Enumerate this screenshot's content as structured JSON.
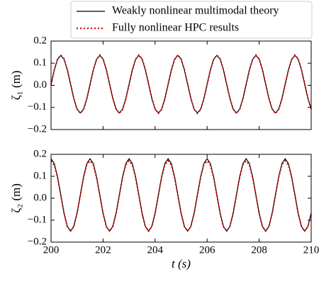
{
  "chart_data": [
    {
      "type": "line",
      "ylabel": "ζ₁ (m)",
      "x": [
        200,
        200.125,
        200.25,
        200.375,
        200.5,
        200.625,
        200.75,
        200.875,
        201,
        201.125,
        201.25,
        201.375,
        201.5,
        201.625,
        201.75,
        201.875,
        202,
        202.125,
        202.25,
        202.375,
        202.5,
        202.625,
        202.75,
        202.875,
        203,
        203.125,
        203.25,
        203.375,
        203.5,
        203.625,
        203.75,
        203.875,
        204,
        204.125,
        204.25,
        204.375,
        204.5,
        204.625,
        204.75,
        204.875,
        205,
        205.125,
        205.25,
        205.375,
        205.5,
        205.625,
        205.75,
        205.875,
        206,
        206.125,
        206.25,
        206.375,
        206.5,
        206.625,
        206.75,
        206.875,
        207,
        207.125,
        207.25,
        207.375,
        207.5,
        207.625,
        207.75,
        207.875,
        208,
        208.125,
        208.25,
        208.375,
        208.5,
        208.625,
        208.75,
        208.875,
        209,
        209.125,
        209.25,
        209.375,
        209.5,
        209.625,
        209.75,
        209.875,
        210
      ],
      "series": [
        {
          "name": "Weakly nonlinear multimodal theory",
          "color": "#000000",
          "style": "solid",
          "values": [
            0.005,
            0.07,
            0.118,
            0.135,
            0.118,
            0.07,
            0.005,
            -0.06,
            -0.108,
            -0.125,
            -0.108,
            -0.06,
            0.005,
            0.07,
            0.118,
            0.135,
            0.118,
            0.07,
            0.005,
            -0.06,
            -0.108,
            -0.125,
            -0.108,
            -0.06,
            0.005,
            0.07,
            0.118,
            0.135,
            0.118,
            0.07,
            0.005,
            -0.06,
            -0.108,
            -0.125,
            -0.108,
            -0.06,
            0.005,
            0.07,
            0.118,
            0.135,
            0.118,
            0.07,
            0.005,
            -0.06,
            -0.108,
            -0.125,
            -0.108,
            -0.06,
            0.005,
            0.07,
            0.118,
            0.135,
            0.118,
            0.07,
            0.005,
            -0.06,
            -0.108,
            -0.125,
            -0.108,
            -0.06,
            0.005,
            0.07,
            0.118,
            0.135,
            0.118,
            0.07,
            0.005,
            -0.06,
            -0.108,
            -0.125,
            -0.108,
            -0.06,
            0.005,
            0.07,
            0.118,
            0.135,
            0.118,
            0.07,
            0.005,
            -0.06,
            -0.108
          ]
        },
        {
          "name": "Fully nonlinear HPC results",
          "color": "#e00000",
          "style": "dotted",
          "values": [
            0.003,
            0.068,
            0.117,
            0.137,
            0.12,
            0.072,
            0.007,
            -0.058,
            -0.107,
            -0.127,
            -0.11,
            -0.062,
            0.003,
            0.068,
            0.117,
            0.137,
            0.12,
            0.072,
            0.007,
            -0.058,
            -0.107,
            -0.127,
            -0.11,
            -0.062,
            0.003,
            0.068,
            0.117,
            0.137,
            0.12,
            0.072,
            0.007,
            -0.058,
            -0.107,
            -0.127,
            -0.11,
            -0.062,
            0.003,
            0.068,
            0.117,
            0.137,
            0.12,
            0.072,
            0.007,
            -0.058,
            -0.107,
            -0.127,
            -0.11,
            -0.062,
            0.003,
            0.068,
            0.117,
            0.137,
            0.12,
            0.072,
            0.007,
            -0.058,
            -0.107,
            -0.127,
            -0.11,
            -0.062,
            0.003,
            0.068,
            0.117,
            0.137,
            0.12,
            0.072,
            0.007,
            -0.058,
            -0.107,
            -0.127,
            -0.11,
            -0.062,
            0.003,
            0.068,
            0.117,
            0.137,
            0.12,
            0.072,
            0.007,
            -0.058,
            -0.107
          ]
        }
      ],
      "xlim": [
        200,
        210
      ],
      "xticks": [
        200,
        202,
        204,
        206,
        208,
        210
      ],
      "ylim": [
        -0.2,
        0.2
      ],
      "yticks": [
        {
          "value": -0.2,
          "label": "−0.2"
        },
        {
          "value": -0.1,
          "label": "−0.1"
        },
        {
          "value": 0,
          "label": "0.0"
        },
        0.1,
        0.2
      ]
    },
    {
      "type": "line",
      "ylabel": "ζ₂ (m)",
      "xlabel": "t (s)",
      "x": [
        200,
        200.125,
        200.25,
        200.375,
        200.5,
        200.625,
        200.75,
        200.875,
        201,
        201.125,
        201.25,
        201.375,
        201.5,
        201.625,
        201.75,
        201.875,
        202,
        202.125,
        202.25,
        202.375,
        202.5,
        202.625,
        202.75,
        202.875,
        203,
        203.125,
        203.25,
        203.375,
        203.5,
        203.625,
        203.75,
        203.875,
        204,
        204.125,
        204.25,
        204.375,
        204.5,
        204.625,
        204.75,
        204.875,
        205,
        205.125,
        205.25,
        205.375,
        205.5,
        205.625,
        205.75,
        205.875,
        206,
        206.125,
        206.25,
        206.375,
        206.5,
        206.625,
        206.75,
        206.875,
        207,
        207.125,
        207.25,
        207.375,
        207.5,
        207.625,
        207.75,
        207.875,
        208,
        208.125,
        208.25,
        208.375,
        208.5,
        208.625,
        208.75,
        208.875,
        209,
        209.125,
        209.25,
        209.375,
        209.5,
        209.625,
        209.75,
        209.875,
        210
      ],
      "series": [
        {
          "color": "#000000",
          "style": "solid",
          "values": [
            0.18,
            0.158,
            0.098,
            0.015,
            -0.068,
            -0.128,
            -0.15,
            -0.128,
            -0.068,
            0.015,
            0.098,
            0.158,
            0.18,
            0.158,
            0.098,
            0.015,
            -0.068,
            -0.128,
            -0.15,
            -0.128,
            -0.068,
            0.015,
            0.098,
            0.158,
            0.18,
            0.158,
            0.098,
            0.015,
            -0.068,
            -0.128,
            -0.15,
            -0.128,
            -0.068,
            0.015,
            0.098,
            0.158,
            0.18,
            0.158,
            0.098,
            0.015,
            -0.068,
            -0.128,
            -0.15,
            -0.128,
            -0.068,
            0.015,
            0.098,
            0.158,
            0.18,
            0.158,
            0.098,
            0.015,
            -0.068,
            -0.128,
            -0.15,
            -0.128,
            -0.068,
            0.015,
            0.098,
            0.158,
            0.18,
            0.158,
            0.098,
            0.015,
            -0.068,
            -0.128,
            -0.15,
            -0.128,
            -0.068,
            0.015,
            0.098,
            0.158,
            0.18,
            0.158,
            0.098,
            0.015,
            -0.068,
            -0.128,
            -0.15,
            -0.128,
            -0.068
          ]
        },
        {
          "color": "#e00000",
          "style": "dotted",
          "values": [
            0.17,
            0.15,
            0.093,
            0.013,
            -0.07,
            -0.13,
            -0.15,
            -0.129,
            -0.07,
            0.012,
            0.094,
            0.152,
            0.17,
            0.15,
            0.093,
            0.013,
            -0.07,
            -0.13,
            -0.15,
            -0.129,
            -0.07,
            0.012,
            0.094,
            0.152,
            0.17,
            0.15,
            0.093,
            0.013,
            -0.07,
            -0.13,
            -0.15,
            -0.129,
            -0.07,
            0.012,
            0.094,
            0.152,
            0.17,
            0.15,
            0.093,
            0.013,
            -0.07,
            -0.13,
            -0.15,
            -0.129,
            -0.07,
            0.012,
            0.094,
            0.152,
            0.17,
            0.15,
            0.093,
            0.013,
            -0.07,
            -0.13,
            -0.15,
            -0.129,
            -0.07,
            0.012,
            0.094,
            0.152,
            0.17,
            0.15,
            0.093,
            0.013,
            -0.07,
            -0.13,
            -0.15,
            -0.129,
            -0.07,
            0.012,
            0.094,
            0.152,
            0.17,
            0.15,
            0.093,
            0.013,
            -0.07,
            -0.13,
            -0.15,
            -0.129,
            -0.07
          ]
        }
      ],
      "xlim": [
        200,
        210
      ],
      "xticks": [
        200,
        202,
        204,
        206,
        208,
        210
      ],
      "ylim": [
        -0.2,
        0.2
      ],
      "yticks": [
        {
          "value": -0.2,
          "label": "−0.2"
        },
        {
          "value": -0.1,
          "label": "−0.1"
        },
        {
          "value": 0,
          "label": "0.0"
        },
        0.1,
        0.2
      ]
    }
  ]
}
